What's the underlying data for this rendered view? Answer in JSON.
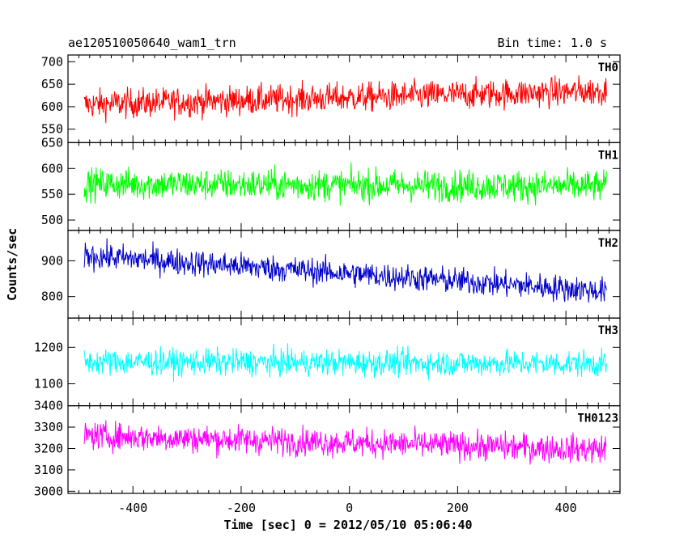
{
  "header": {
    "title": "ae120510050640_wam1_trn",
    "bin_time": "Bin time: 1.0 s"
  },
  "chart_data": {
    "type": "line",
    "xlabel": "Time [sec] 0 = 2012/05/10 05:06:40",
    "ylabel": "Counts/sec",
    "xlim": [
      -520,
      500
    ],
    "x_ticks": [
      -400,
      -200,
      0,
      200,
      400
    ],
    "x_start": -490,
    "x_end": 475,
    "x_step": 1,
    "shared_x_axis": true,
    "panels": [
      {
        "name": "TH0",
        "color": "#ff0000",
        "ylim": [
          520,
          715
        ],
        "y_ticks": [
          550,
          600,
          650,
          700
        ],
        "trend_start": 605,
        "trend_end": 635,
        "scatter": 30
      },
      {
        "name": "TH1",
        "color": "#00ff00",
        "ylim": [
          480,
          650
        ],
        "y_ticks": [
          500,
          550,
          600,
          650
        ],
        "trend_start": 570,
        "trend_end": 565,
        "scatter": 28
      },
      {
        "name": "TH2",
        "color": "#0000cc",
        "ylim": [
          740,
          985
        ],
        "y_ticks": [
          800,
          900
        ],
        "trend_start": 915,
        "trend_end": 815,
        "scatter": 34
      },
      {
        "name": "TH3",
        "color": "#00ffff",
        "ylim": [
          1040,
          1280
        ],
        "y_ticks": [
          1100,
          1200
        ],
        "trend_start": 1160,
        "trend_end": 1155,
        "scatter": 33
      },
      {
        "name": "TH0123",
        "color": "#ff00ff",
        "ylim": [
          2990,
          3400
        ],
        "y_ticks": [
          3000,
          3100,
          3200,
          3300,
          3400
        ],
        "trend_start": 3260,
        "trend_end": 3195,
        "scatter": 60
      }
    ]
  }
}
